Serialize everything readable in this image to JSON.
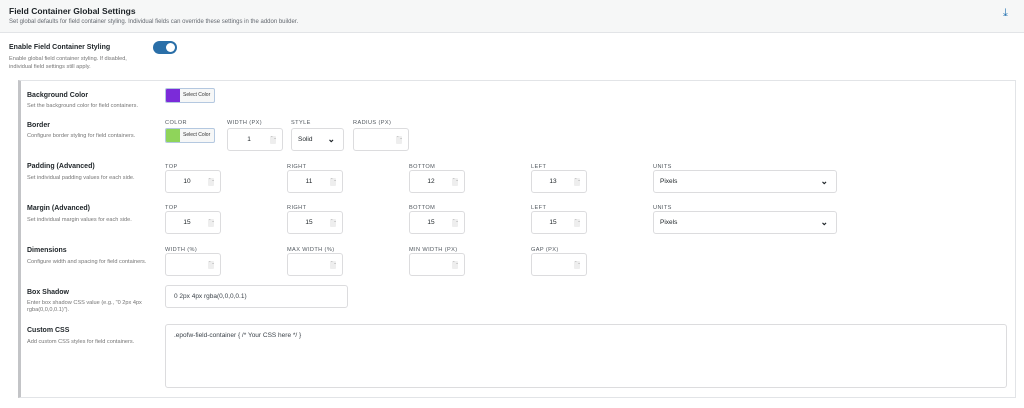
{
  "header": {
    "title": "Field Container Global Settings",
    "subtitle": "Set global defaults for field container styling. Individual fields can override these settings in the addon builder.",
    "download_icon": "download-icon"
  },
  "enable": {
    "label": "Enable Field Container Styling",
    "desc1": "Enable global field container styling. If disabled,",
    "desc2": "individual field settings still apply.",
    "on": true,
    "accent": "#2a6fa8"
  },
  "background": {
    "label": "Background Color",
    "desc": "Set the background color for field containers.",
    "color": "#7b2bd9",
    "button": "Select Color"
  },
  "border": {
    "label": "Border",
    "desc": "Configure border styling for field containers.",
    "color_cap": "COLOR",
    "color": "#8fd45a",
    "button": "Select Color",
    "width_cap": "WIDTH (PX)",
    "width": "1",
    "style_cap": "STYLE",
    "style": "Solid",
    "radius_cap": "RADIUS (PX)",
    "radius": ""
  },
  "padding": {
    "label": "Padding (Advanced)",
    "desc": "Set individual padding values for each side.",
    "caps": [
      "TOP",
      "RIGHT",
      "BOTTOM",
      "LEFT"
    ],
    "values": [
      "10",
      "11",
      "12",
      "13"
    ],
    "units_cap": "UNITS",
    "units": "Pixels"
  },
  "margin": {
    "label": "Margin (Advanced)",
    "desc": "Set individual margin values for each side.",
    "caps": [
      "TOP",
      "RIGHT",
      "BOTTOM",
      "LEFT"
    ],
    "values": [
      "15",
      "15",
      "15",
      "15"
    ],
    "units_cap": "UNITS",
    "units": "Pixels"
  },
  "dimensions": {
    "label": "Dimensions",
    "desc": "Configure width and spacing for field containers.",
    "caps": [
      "WIDTH (%)",
      "MAX WIDTH (%)",
      "MIN WIDTH (PX)",
      "GAP (PX)"
    ],
    "values": [
      "",
      "",
      "",
      ""
    ]
  },
  "shadow": {
    "label": "Box Shadow",
    "desc1": "Enter box shadow CSS value (e.g., \"0 2px 4px",
    "desc2": "rgba(0,0,0,0.1)\").",
    "value": "0 2px 4px rgba(0,0,0,0.1)"
  },
  "css": {
    "label": "Custom CSS",
    "desc": "Add custom CSS styles for field containers.",
    "value": ".epofw-field-container { /* Your CSS here */ }"
  }
}
